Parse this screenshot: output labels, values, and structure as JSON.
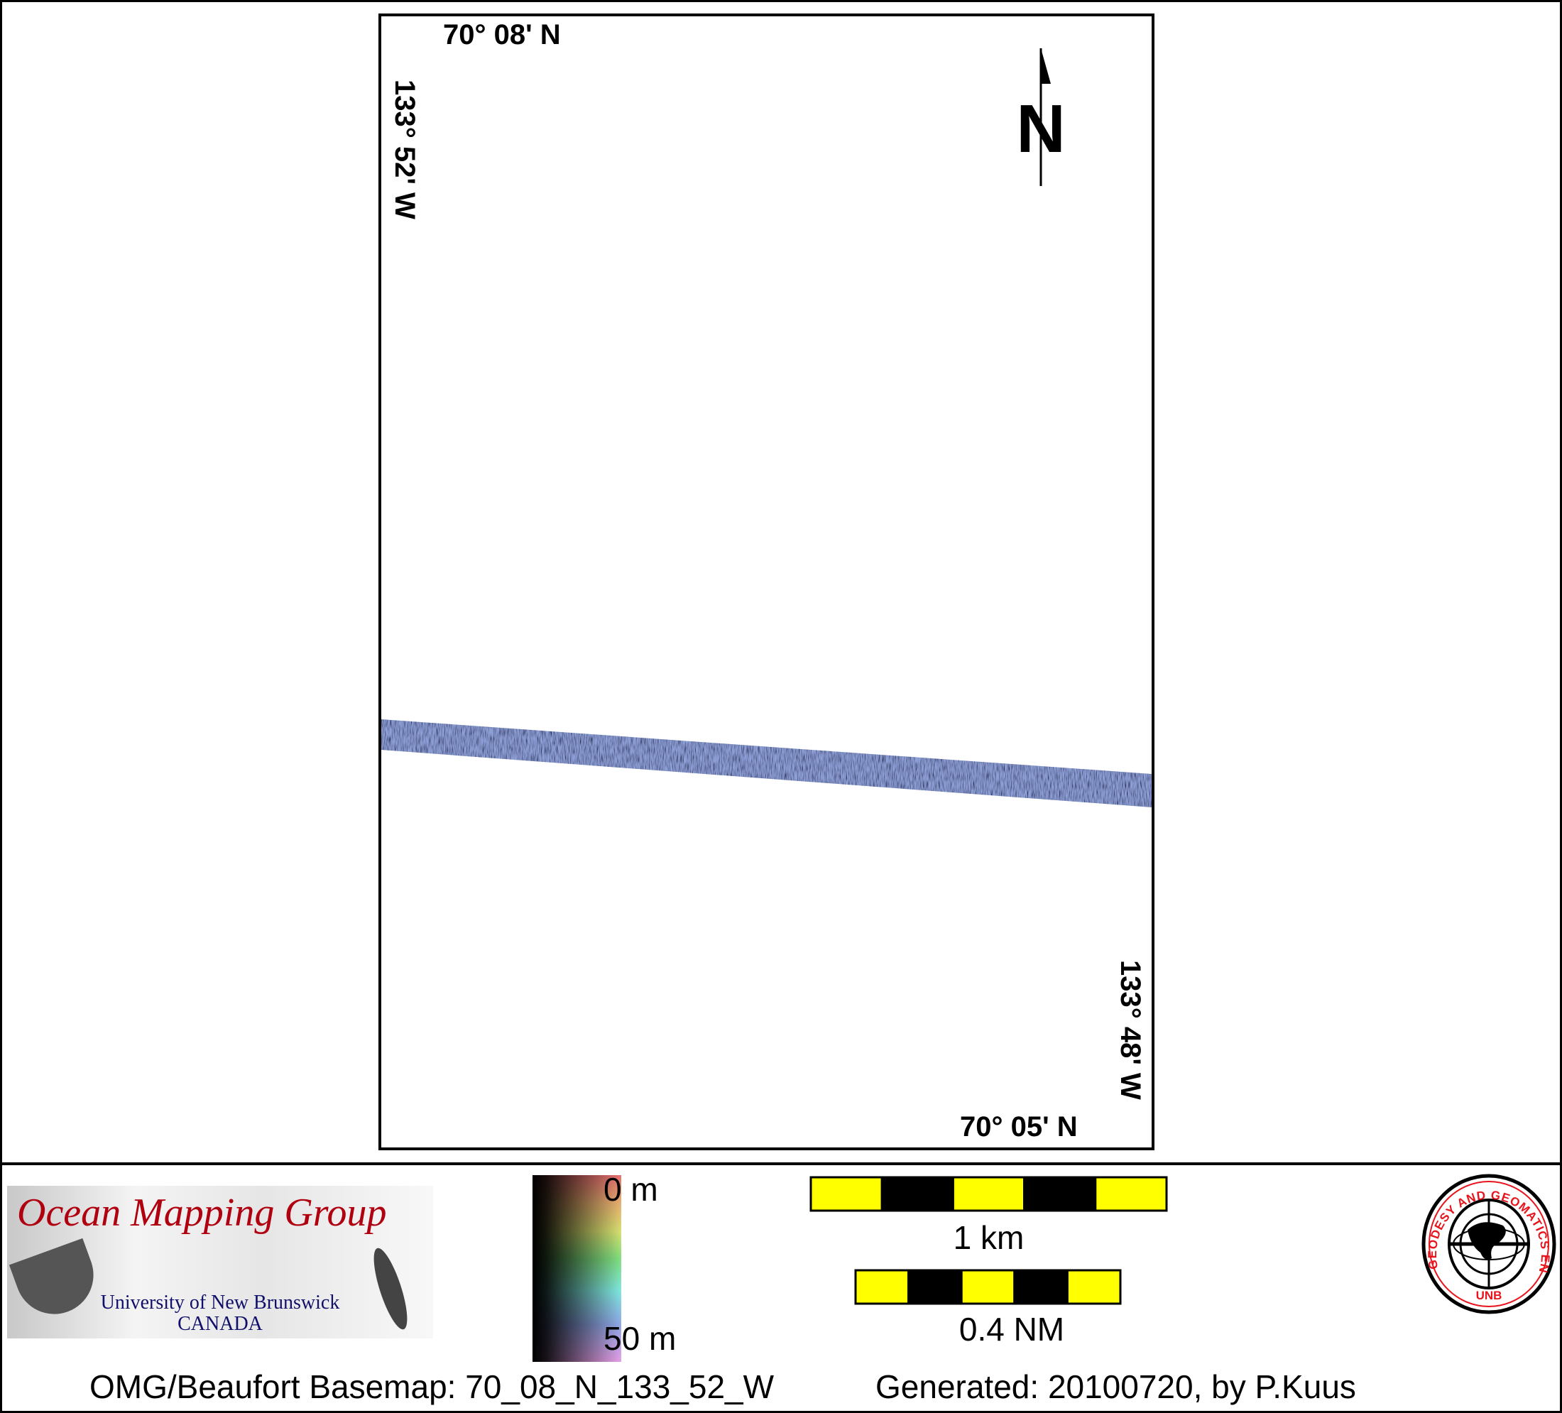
{
  "map": {
    "top_latitude": "70° 08' N",
    "bottom_latitude": "70° 05' N",
    "left_longitude": "133° 52' W",
    "right_longitude": "133° 48' W",
    "north_arrow_label": "N",
    "swath_color": "#8fa0d8"
  },
  "footer": {
    "logo": {
      "title": "Ocean Mapping Group",
      "university": "University of New Brunswick",
      "country": "CANADA"
    },
    "depth_scale": {
      "top_label": "0 m",
      "bottom_label": "50 m"
    },
    "scale_bars": [
      {
        "label": "1 km",
        "segments": 5
      },
      {
        "label": "0.4 NM",
        "segments": 5
      }
    ],
    "scale_bar_colors": {
      "light": "#ffff00",
      "dark": "#000000"
    },
    "unb_logo": {
      "ring_text": "GEODESY AND GEOMATICS ENGINEERING",
      "bottom_text": "UNB",
      "color": "#e8141c"
    },
    "basemap_caption": "OMG/Beaufort Basemap: 70_08_N_133_52_W",
    "generated_caption": "Generated: 20100720, by P.Kuus"
  }
}
